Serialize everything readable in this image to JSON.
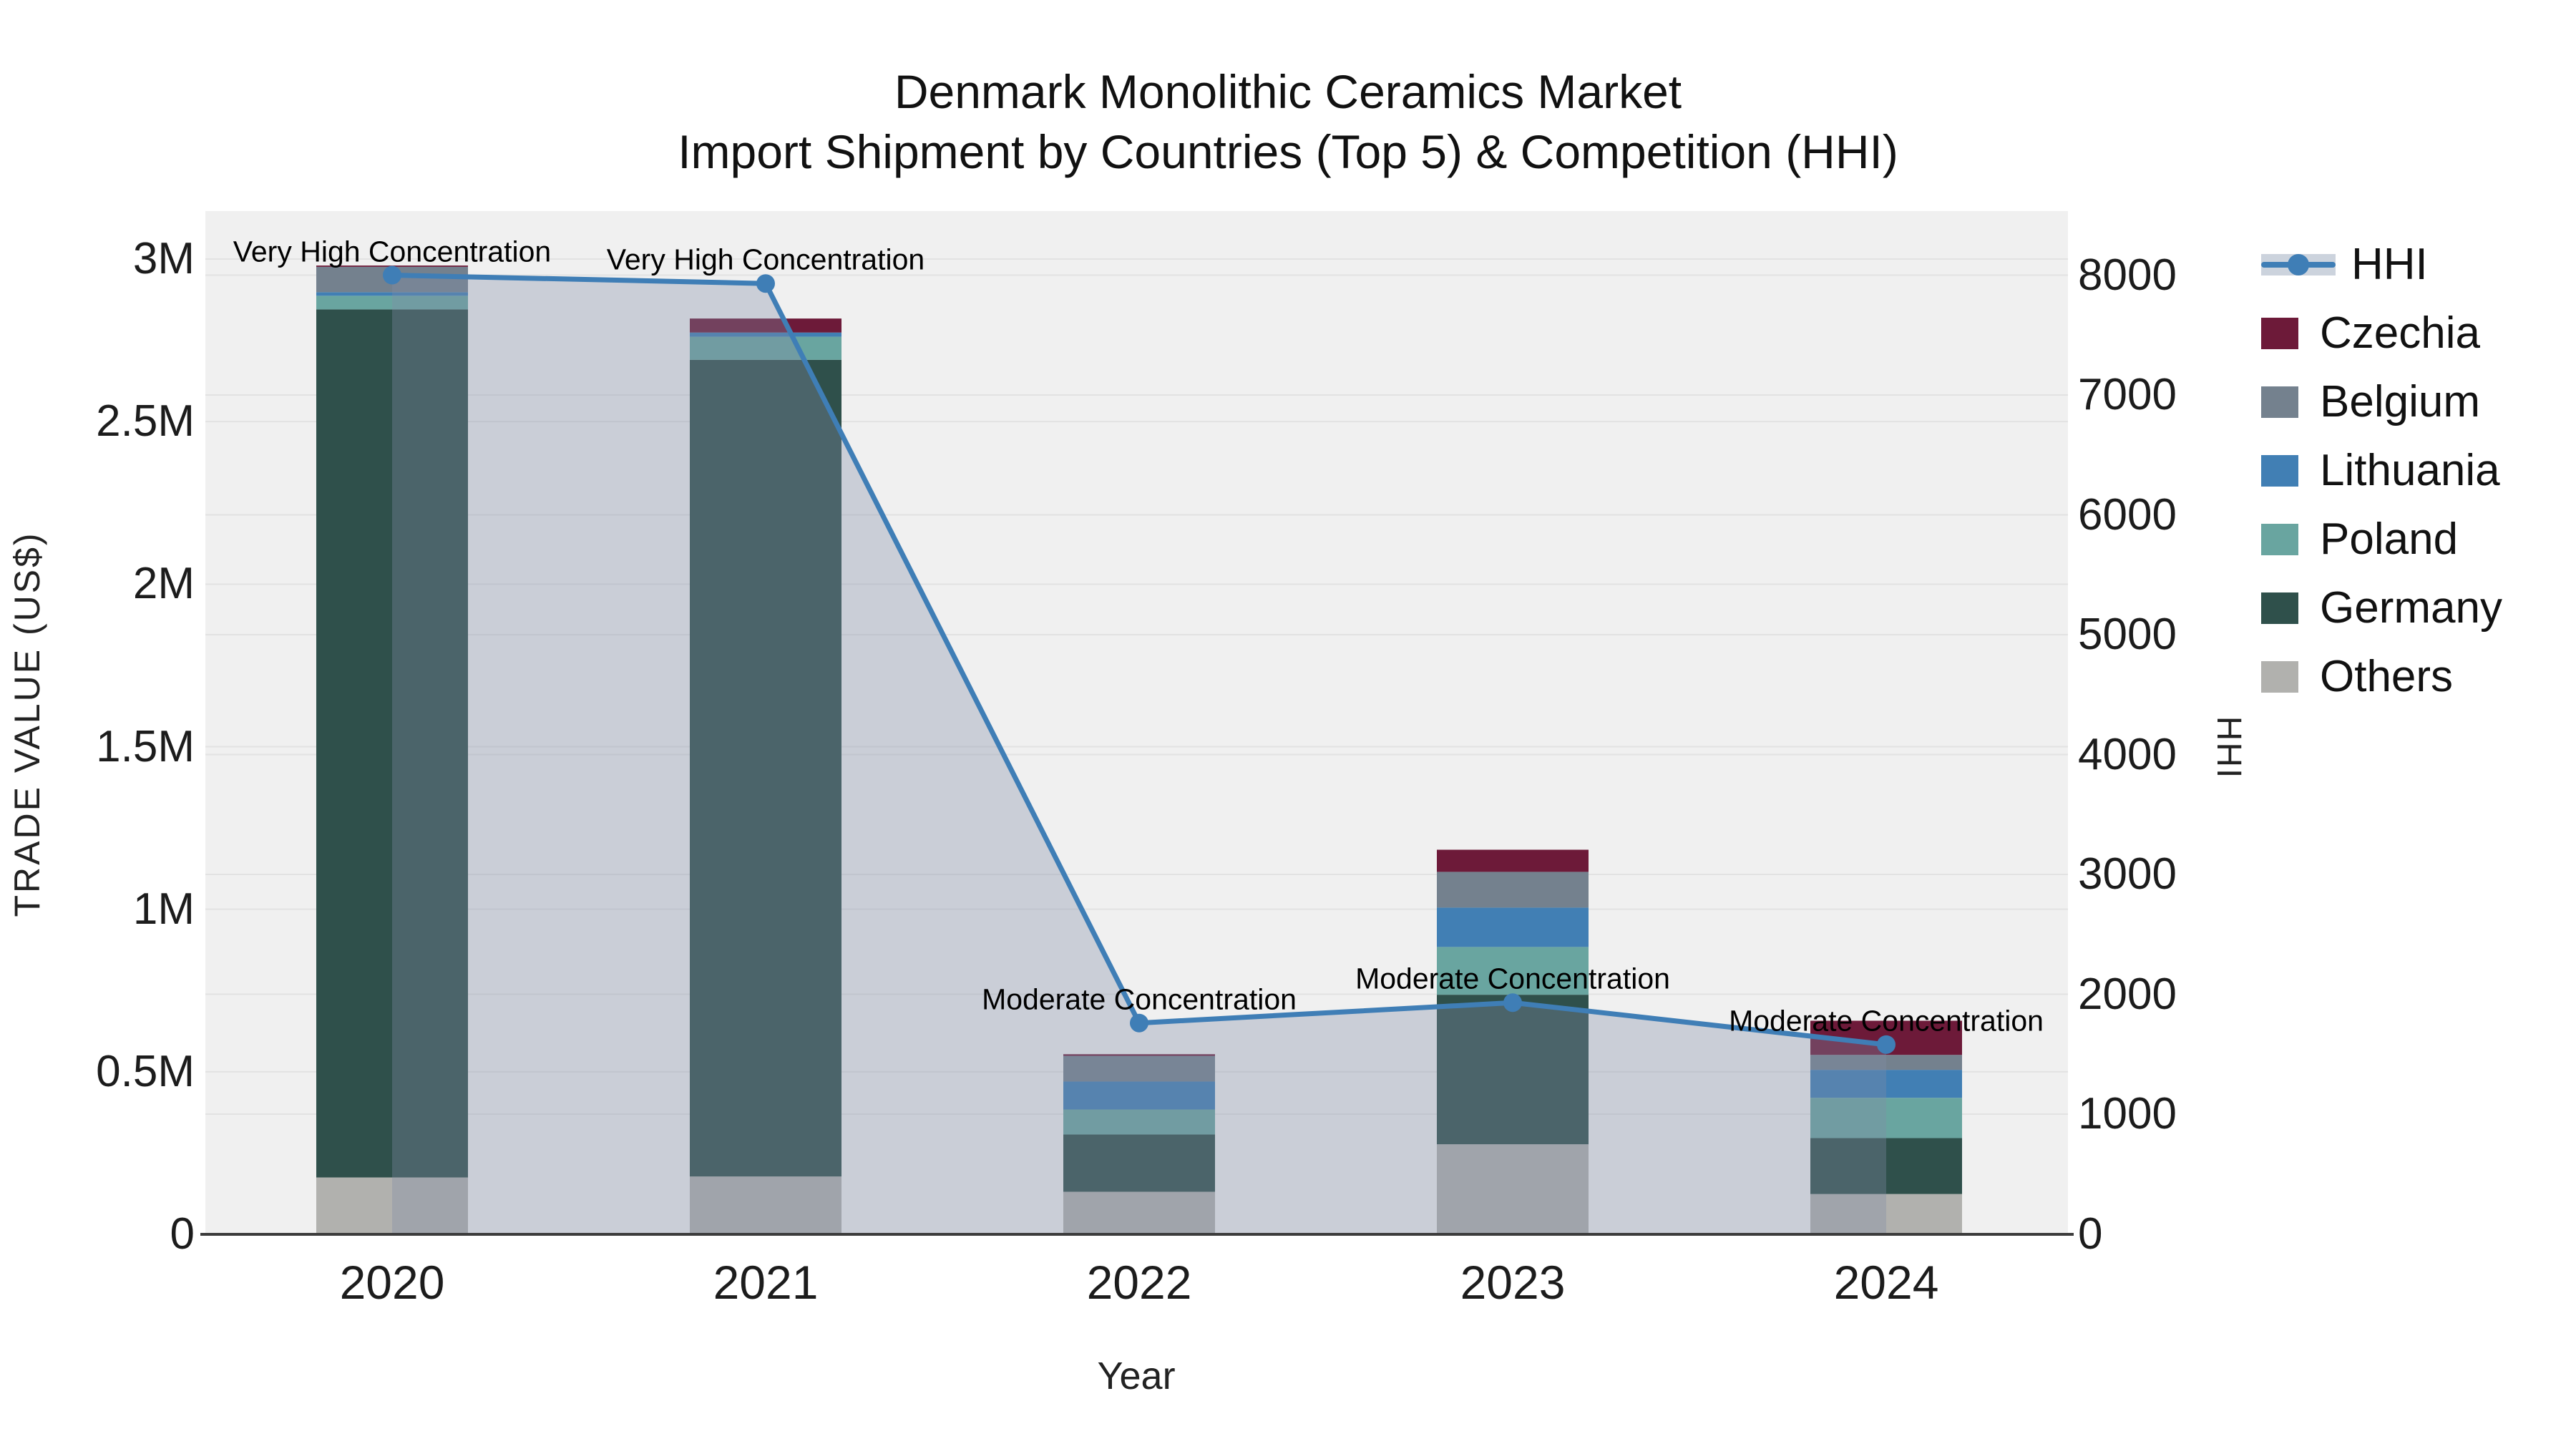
{
  "chart_data": {
    "type": "bar+line",
    "title_line1": "Denmark Monolithic Ceramics Market",
    "title_line2": "Import Shipment by Countries (Top 5) & Competition (HHI)",
    "categories": [
      "2020",
      "2021",
      "2022",
      "2023",
      "2024"
    ],
    "stack_order_note": "bars stacked bottom-to-top",
    "bar_series": [
      {
        "name": "Others",
        "color": "#b1b1ae",
        "values": [
          175000,
          178000,
          131000,
          277000,
          124000
        ]
      },
      {
        "name": "Germany",
        "color": "#2f504b",
        "values": [
          2670000,
          2512000,
          176000,
          460000,
          172000
        ]
      },
      {
        "name": "Poland",
        "color": "#69a5a0",
        "values": [
          42000,
          71000,
          77000,
          147000,
          124000
        ]
      },
      {
        "name": "Lithuania",
        "color": "#417fb4",
        "values": [
          11000,
          13000,
          86000,
          121000,
          86000
        ]
      },
      {
        "name": "Belgium",
        "color": "#74818e",
        "values": [
          78000,
          0,
          79000,
          110000,
          46000
        ]
      },
      {
        "name": "Czechia",
        "color": "#6d1a39",
        "values": [
          4000,
          43000,
          5000,
          68000,
          105000
        ]
      }
    ],
    "line_series": {
      "name": "HHI",
      "color": "#3f7eb6",
      "fill_color": "rgba(128,142,166,0.34)",
      "values": [
        8000,
        7930,
        1760,
        1930,
        1580
      ]
    },
    "annotations": [
      {
        "category": "2020",
        "text": "Very High Concentration"
      },
      {
        "category": "2021",
        "text": "Very High Concentration"
      },
      {
        "category": "2022",
        "text": "Moderate Concentration"
      },
      {
        "category": "2023",
        "text": "Moderate Concentration"
      },
      {
        "category": "2024",
        "text": "Moderate Concentration"
      }
    ],
    "left_axis": {
      "title": "TRADE VALUE (US$)",
      "ticks": [
        {
          "label": "0",
          "value": 0
        },
        {
          "label": "0.5M",
          "value": 500000
        },
        {
          "label": "1M",
          "value": 1000000
        },
        {
          "label": "1.5M",
          "value": 1500000
        },
        {
          "label": "2M",
          "value": 2000000
        },
        {
          "label": "2.5M",
          "value": 2500000
        },
        {
          "label": "3M",
          "value": 3000000
        }
      ],
      "range": [
        0,
        3147000
      ]
    },
    "right_axis": {
      "title": "HHI",
      "ticks": [
        {
          "label": "0",
          "value": 0
        },
        {
          "label": "1000",
          "value": 1000
        },
        {
          "label": "2000",
          "value": 2000
        },
        {
          "label": "3000",
          "value": 3000
        },
        {
          "label": "4000",
          "value": 4000
        },
        {
          "label": "5000",
          "value": 5000
        },
        {
          "label": "6000",
          "value": 6000
        },
        {
          "label": "7000",
          "value": 7000
        },
        {
          "label": "8000",
          "value": 8000
        }
      ],
      "range": [
        0,
        8534
      ]
    },
    "x_axis": {
      "title": "Year"
    },
    "legend": [
      {
        "label": "HHI",
        "type": "line"
      },
      {
        "label": "Czechia",
        "type": "swatch",
        "color": "#6d1a39"
      },
      {
        "label": "Belgium",
        "type": "swatch",
        "color": "#74818e"
      },
      {
        "label": "Lithuania",
        "type": "swatch",
        "color": "#417fb4"
      },
      {
        "label": "Poland",
        "type": "swatch",
        "color": "#69a5a0"
      },
      {
        "label": "Germany",
        "type": "swatch",
        "color": "#2f504b"
      },
      {
        "label": "Others",
        "type": "swatch",
        "color": "#b1b1ae"
      }
    ],
    "colors": {
      "plot_bg": "#f0f0f0",
      "grid": "#e2e2e2",
      "axis_line": "#3c3c3c",
      "legend_band": "#ccd3dd"
    },
    "legend_position": "right",
    "grid": true
  }
}
